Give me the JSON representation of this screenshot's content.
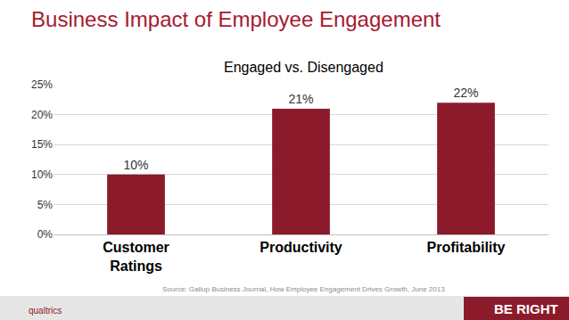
{
  "chart_data": {
    "type": "bar",
    "title": "Business Impact of Employee Engagement",
    "subtitle": "Engaged vs. Disengaged",
    "categories": [
      "Customer Ratings",
      "Productivity",
      "Profitability"
    ],
    "values": [
      10,
      21,
      22
    ],
    "value_labels": [
      "10%",
      "21%",
      "22%"
    ],
    "data_labels": true,
    "color": "#8b1a2b",
    "ylim": [
      0,
      25
    ],
    "yticks": [
      {
        "value": 0,
        "label": "0%"
      },
      {
        "value": 5,
        "label": "5%"
      },
      {
        "value": 10,
        "label": "10%"
      },
      {
        "value": 15,
        "label": "15%"
      },
      {
        "value": 20,
        "label": "20%"
      },
      {
        "value": 25,
        "label": "25%"
      }
    ],
    "grid": true,
    "annotations": [
      "Source: Gallup Business Journal, How Employee Engagement Drives Growth, June 2013",
      "qualtrics",
      "BE RIGHT"
    ]
  }
}
